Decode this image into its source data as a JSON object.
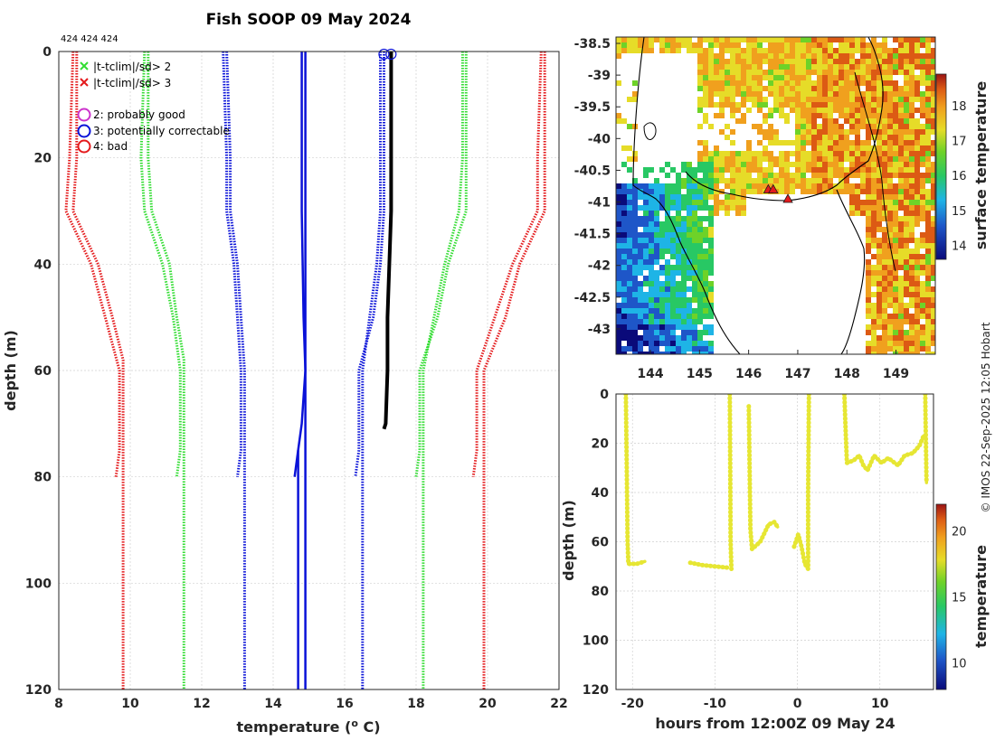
{
  "title": "Fish SOOP 09 May 2024",
  "ids_label": "424 424 424",
  "credit": "© IMOS 22-Sep-2025 12:05 Hobart",
  "colors": {
    "red": "#e41a1c",
    "green": "#33dd33",
    "blue": "#0a12d8",
    "black": "#000000",
    "magenta": "#cc33cc",
    "yellow": "#e6e633",
    "grid": "#d0d0d0"
  },
  "legend": {
    "x_green": "|t-tclim|/sd> 2",
    "x_red": "|t-tclim|/sd> 3",
    "flag2": "2: probably good",
    "flag3": "3: potentially correctable",
    "flag4": "4: bad"
  },
  "chart_data": [
    {
      "type": "line",
      "name": "profile",
      "xlabel": "temperature (o C)",
      "ylabel": "depth (m)",
      "xlim": [
        8,
        22
      ],
      "ylim": [
        0,
        120
      ],
      "y_reversed": true,
      "xticks": [
        8,
        10,
        12,
        14,
        16,
        18,
        20,
        22
      ],
      "yticks": [
        0,
        20,
        40,
        60,
        80,
        100,
        120
      ],
      "grid": true,
      "series": [
        {
          "name": "clim -3sd a",
          "color": "red",
          "style": "dotted",
          "points": [
            [
              8.5,
              0
            ],
            [
              8.5,
              20
            ],
            [
              8.4,
              30
            ],
            [
              9.1,
              40
            ],
            [
              9.5,
              50
            ],
            [
              9.8,
              58
            ],
            [
              9.8,
              60
            ],
            [
              9.8,
              120
            ]
          ]
        },
        {
          "name": "clim -3sd b",
          "color": "red",
          "style": "dotted",
          "points": [
            [
              8.4,
              0
            ],
            [
              8.3,
              20
            ],
            [
              8.2,
              30
            ],
            [
              8.9,
              40
            ],
            [
              9.3,
              50
            ],
            [
              9.7,
              60
            ],
            [
              9.7,
              75
            ],
            [
              9.6,
              80
            ]
          ]
        },
        {
          "name": "clim -2sd a",
          "color": "green",
          "style": "dotted",
          "points": [
            [
              10.5,
              0
            ],
            [
              10.5,
              20
            ],
            [
              10.6,
              30
            ],
            [
              11.1,
              40
            ],
            [
              11.3,
              50
            ],
            [
              11.5,
              58
            ],
            [
              11.5,
              60
            ],
            [
              11.5,
              120
            ]
          ]
        },
        {
          "name": "clim -2sd b",
          "color": "green",
          "style": "dotted",
          "points": [
            [
              10.4,
              0
            ],
            [
              10.3,
              20
            ],
            [
              10.4,
              30
            ],
            [
              10.9,
              40
            ],
            [
              11.2,
              50
            ],
            [
              11.4,
              60
            ],
            [
              11.4,
              75
            ],
            [
              11.3,
              80
            ]
          ]
        },
        {
          "name": "clim -1sd a",
          "color": "blue",
          "style": "dotted",
          "points": [
            [
              12.7,
              0
            ],
            [
              12.8,
              20
            ],
            [
              12.8,
              30
            ],
            [
              13.0,
              40
            ],
            [
              13.1,
              50
            ],
            [
              13.2,
              60
            ],
            [
              13.2,
              120
            ]
          ]
        },
        {
          "name": "clim -1sd b",
          "color": "blue",
          "style": "dotted",
          "points": [
            [
              12.6,
              0
            ],
            [
              12.7,
              20
            ],
            [
              12.7,
              30
            ],
            [
              12.9,
              40
            ],
            [
              13.0,
              50
            ],
            [
              13.1,
              60
            ],
            [
              13.1,
              75
            ],
            [
              13.0,
              80
            ]
          ]
        },
        {
          "name": "climatology mean a",
          "color": "blue",
          "style": "solid",
          "points": [
            [
              14.9,
              0
            ],
            [
              14.9,
              20
            ],
            [
              14.9,
              30
            ],
            [
              14.9,
              60
            ],
            [
              14.9,
              70
            ],
            [
              14.9,
              120
            ]
          ]
        },
        {
          "name": "climatology mean b",
          "color": "blue",
          "style": "solid",
          "points": [
            [
              14.8,
              0
            ],
            [
              14.8,
              20
            ],
            [
              14.8,
              30
            ],
            [
              14.85,
              50
            ],
            [
              14.9,
              60
            ],
            [
              14.8,
              70
            ],
            [
              14.7,
              75
            ],
            [
              14.7,
              120
            ]
          ]
        },
        {
          "name": "climatology mean c",
          "color": "blue",
          "style": "solid",
          "points": [
            [
              14.7,
              75
            ],
            [
              14.6,
              80
            ]
          ]
        },
        {
          "name": "clim +1sd a",
          "color": "blue",
          "style": "dotted",
          "points": [
            [
              17.0,
              0
            ],
            [
              17.0,
              20
            ],
            [
              17.0,
              30
            ],
            [
              16.9,
              40
            ],
            [
              16.7,
              50
            ],
            [
              16.5,
              60
            ],
            [
              16.5,
              120
            ]
          ]
        },
        {
          "name": "clim +1sd b",
          "color": "blue",
          "style": "dotted",
          "points": [
            [
              17.1,
              0
            ],
            [
              17.1,
              20
            ],
            [
              17.1,
              30
            ],
            [
              17.0,
              40
            ],
            [
              16.8,
              50
            ],
            [
              16.4,
              60
            ],
            [
              16.4,
              75
            ],
            [
              16.3,
              80
            ]
          ]
        },
        {
          "name": "clim +2sd a",
          "color": "green",
          "style": "dotted",
          "points": [
            [
              19.3,
              0
            ],
            [
              19.3,
              20
            ],
            [
              19.2,
              30
            ],
            [
              18.8,
              40
            ],
            [
              18.5,
              50
            ],
            [
              18.2,
              60
            ],
            [
              18.2,
              120
            ]
          ]
        },
        {
          "name": "clim +2sd b",
          "color": "green",
          "style": "dotted",
          "points": [
            [
              19.4,
              0
            ],
            [
              19.4,
              20
            ],
            [
              19.4,
              30
            ],
            [
              18.9,
              40
            ],
            [
              18.6,
              50
            ],
            [
              18.1,
              60
            ],
            [
              18.1,
              75
            ],
            [
              18.0,
              80
            ]
          ]
        },
        {
          "name": "clim +3sd a",
          "color": "red",
          "style": "dotted",
          "points": [
            [
              21.6,
              0
            ],
            [
              21.6,
              20
            ],
            [
              21.6,
              30
            ],
            [
              20.9,
              40
            ],
            [
              20.5,
              50
            ],
            [
              19.9,
              60
            ],
            [
              19.9,
              120
            ]
          ]
        },
        {
          "name": "clim +3sd b",
          "color": "red",
          "style": "dotted",
          "points": [
            [
              21.5,
              0
            ],
            [
              21.4,
              20
            ],
            [
              21.4,
              30
            ],
            [
              20.7,
              40
            ],
            [
              20.2,
              50
            ],
            [
              19.7,
              60
            ],
            [
              19.7,
              75
            ],
            [
              19.6,
              80
            ]
          ]
        },
        {
          "name": "observed",
          "color": "black",
          "style": "thick",
          "points": [
            [
              17.3,
              0
            ],
            [
              17.3,
              10
            ],
            [
              17.3,
              20
            ],
            [
              17.3,
              30
            ],
            [
              17.25,
              40
            ],
            [
              17.2,
              50
            ],
            [
              17.2,
              60
            ],
            [
              17.15,
              70
            ],
            [
              17.1,
              71
            ]
          ]
        }
      ],
      "markers": [
        {
          "kind": "circle",
          "color": "blue",
          "x": 17.1,
          "y": 0.5
        },
        {
          "kind": "circle",
          "color": "blue",
          "x": 17.3,
          "y": 0.5
        }
      ]
    },
    {
      "type": "heatmap",
      "name": "surface temperature map",
      "xticks": [
        144,
        145,
        146,
        147,
        148,
        149
      ],
      "yticks": [
        -38.5,
        -39,
        -39.5,
        -40,
        -40.5,
        -41,
        -41.5,
        -42,
        -42.5,
        -43
      ],
      "xlim": [
        143.3,
        149.8
      ],
      "ylim": [
        -43.4,
        -38.4
      ],
      "colorbar_label": "surface temperature",
      "colorbar_ticks": [
        14,
        15,
        16,
        17,
        18
      ],
      "colorbar_range": [
        13.6,
        18.9
      ],
      "track_markers": [
        {
          "lon": 146.4,
          "lat": -40.8
        },
        {
          "lon": 146.5,
          "lat": -40.8
        },
        {
          "lon": 146.8,
          "lat": -40.95
        }
      ]
    },
    {
      "type": "scatter",
      "name": "depth vs time",
      "xlabel": "hours from 12:00Z 09 May 24",
      "ylabel": "depth (m)",
      "xlim": [
        -22,
        16.5
      ],
      "ylim": [
        0,
        120
      ],
      "y_reversed": true,
      "xticks": [
        -20,
        -10,
        0,
        10
      ],
      "yticks": [
        0,
        20,
        40,
        60,
        80,
        100,
        120
      ],
      "colorbar_label": "temperature",
      "colorbar_ticks": [
        10,
        15,
        20
      ],
      "colorbar_range": [
        8,
        22
      ],
      "segments": [
        [
          [
            -20.8,
            0
          ],
          [
            -20.7,
            30
          ],
          [
            -20.6,
            60
          ],
          [
            -20.5,
            69
          ],
          [
            -19.5,
            69
          ],
          [
            -18.5,
            68
          ]
        ],
        [
          [
            -13,
            68.5
          ],
          [
            -11.5,
            69.5
          ],
          [
            -10,
            70
          ],
          [
            -8.5,
            70.5
          ]
        ],
        [
          [
            -8.2,
            0
          ],
          [
            -8.15,
            30
          ],
          [
            -8.1,
            60
          ],
          [
            -8.0,
            71
          ]
        ],
        [
          [
            -5.9,
            5
          ],
          [
            -5.8,
            30
          ],
          [
            -5.7,
            55
          ],
          [
            -5.5,
            63
          ],
          [
            -4.5,
            60
          ],
          [
            -3.5,
            53
          ],
          [
            -2.8,
            52
          ],
          [
            -2.4,
            54
          ]
        ],
        [
          [
            -0.4,
            62
          ],
          [
            0.1,
            57
          ],
          [
            0.5,
            62
          ],
          [
            0.9,
            69
          ],
          [
            1.3,
            71
          ],
          [
            1.3,
            40
          ],
          [
            1.4,
            0
          ]
        ],
        [
          [
            5.7,
            0
          ],
          [
            5.8,
            10
          ],
          [
            5.9,
            20
          ],
          [
            6.0,
            28
          ],
          [
            6.8,
            27
          ],
          [
            7.5,
            25
          ],
          [
            8.0,
            29
          ],
          [
            8.5,
            31
          ],
          [
            9.3,
            25
          ],
          [
            10.2,
            28
          ],
          [
            11.0,
            26
          ],
          [
            12.2,
            29
          ],
          [
            13.0,
            25
          ],
          [
            14.0,
            24
          ],
          [
            14.8,
            21
          ],
          [
            15.3,
            17
          ]
        ],
        [
          [
            15.5,
            0
          ],
          [
            15.55,
            12
          ],
          [
            15.6,
            24
          ],
          [
            15.65,
            36
          ]
        ]
      ]
    }
  ]
}
